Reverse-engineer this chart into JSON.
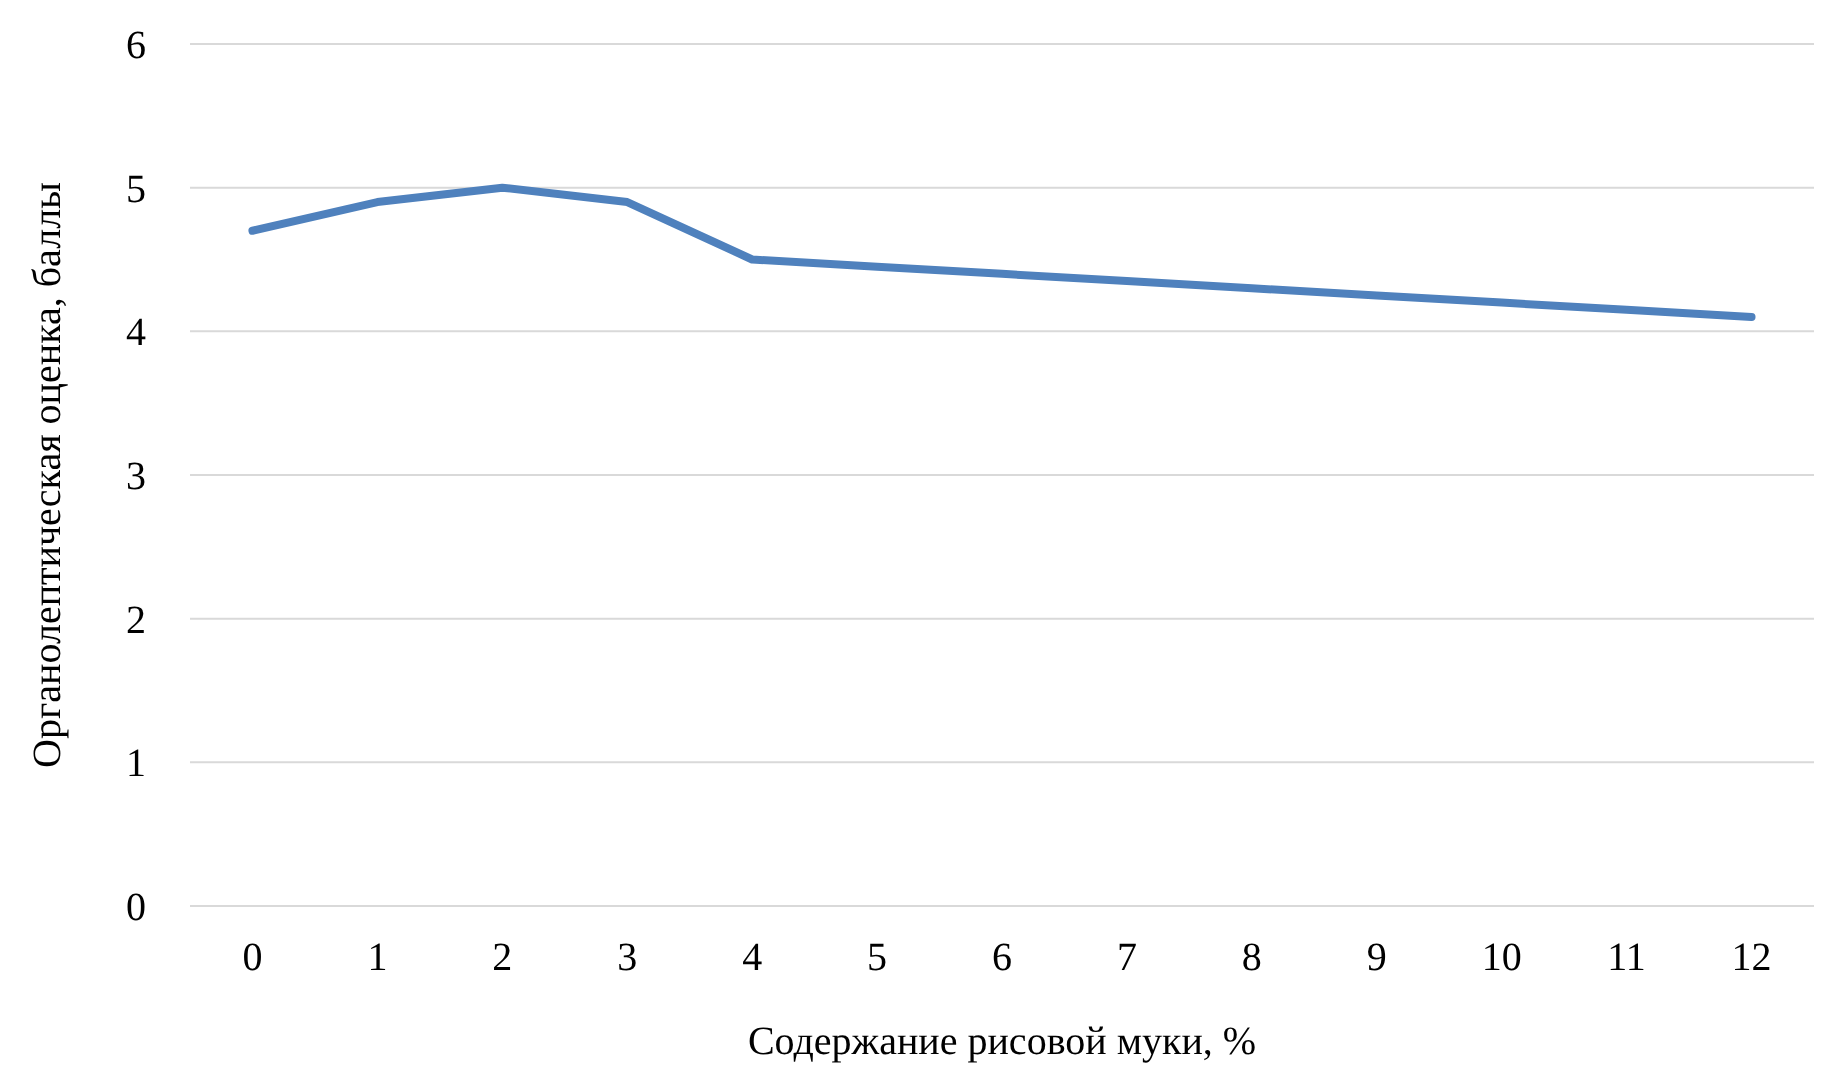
{
  "chart_data": {
    "type": "line",
    "xlabel": "Содержание рисовой муки, %",
    "ylabel": "Органолептическая оценка, баллы",
    "categories": [
      "0",
      "1",
      "2",
      "3",
      "4",
      "5",
      "6",
      "7",
      "8",
      "9",
      "10",
      "11",
      "12"
    ],
    "series": [
      {
        "color": "#4f81bd",
        "values": [
          4.7,
          4.9,
          5.0,
          4.9,
          4.5,
          4.45,
          4.4,
          4.35,
          4.3,
          4.25,
          4.2,
          4.15,
          4.1
        ]
      }
    ],
    "ylim": [
      0,
      6
    ],
    "yticks": [
      0,
      1,
      2,
      3,
      4,
      5,
      6
    ],
    "grid": "y",
    "marker": "none",
    "line_style": "solid"
  }
}
